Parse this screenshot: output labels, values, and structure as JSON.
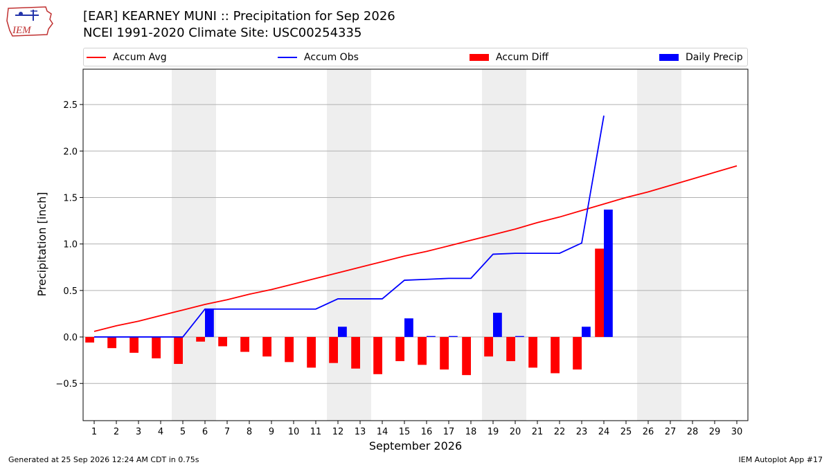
{
  "header": {
    "logo_text": "IEM",
    "title_line1": "[EAR] KEARNEY MUNI :: Precipitation for Sep 2026",
    "title_line2": "NCEI 1991-2020 Climate Site: USC00254335"
  },
  "legend": [
    {
      "label": "Accum Avg",
      "kind": "line",
      "color": "#ff0000"
    },
    {
      "label": "Accum Obs",
      "kind": "line",
      "color": "#0000ff"
    },
    {
      "label": "Accum Diff",
      "kind": "box",
      "color": "#ff0000"
    },
    {
      "label": "Daily Precip",
      "kind": "box",
      "color": "#0000ff"
    }
  ],
  "footer": {
    "left": "Generated at 25 Sep 2026 12:24 AM CDT in 0.75s",
    "right": "IEM Autoplot App #17"
  },
  "chart_data": {
    "type": "bar",
    "xlabel": "September 2026",
    "ylabel": "Precipitation [inch]",
    "xlim": [
      0.5,
      30.5
    ],
    "ylim": [
      -0.9,
      2.88
    ],
    "yticks": [
      -0.5,
      0.0,
      0.5,
      1.0,
      1.5,
      2.0,
      2.5
    ],
    "ytick_labels": [
      "−0.5",
      "0.0",
      "0.5",
      "1.0",
      "1.5",
      "2.0",
      "2.5"
    ],
    "x": [
      1,
      2,
      3,
      4,
      5,
      6,
      7,
      8,
      9,
      10,
      11,
      12,
      13,
      14,
      15,
      16,
      17,
      18,
      19,
      20,
      21,
      22,
      23,
      24,
      25,
      26,
      27,
      28,
      29,
      30
    ],
    "x_labels": [
      "1",
      "2",
      "3",
      "4",
      "5",
      "6",
      "7",
      "8",
      "9",
      "10",
      "11",
      "12",
      "13",
      "14",
      "15",
      "16",
      "17",
      "18",
      "19",
      "20",
      "21",
      "22",
      "23",
      "24",
      "25",
      "26",
      "27",
      "28",
      "29",
      "30"
    ],
    "grid": "horizontal",
    "weekend_shading": [
      [
        5,
        6
      ],
      [
        12,
        13
      ],
      [
        19,
        20
      ],
      [
        26,
        27
      ]
    ],
    "shade_color": "#eeeeee",
    "series": [
      {
        "name": "Accum Avg",
        "kind": "line",
        "color": "#ff0000",
        "x": [
          1,
          2,
          3,
          4,
          5,
          6,
          7,
          8,
          9,
          10,
          11,
          12,
          13,
          14,
          15,
          16,
          17,
          18,
          19,
          20,
          21,
          22,
          23,
          24,
          25,
          26,
          27,
          28,
          29,
          30
        ],
        "values": [
          0.06,
          0.12,
          0.17,
          0.23,
          0.29,
          0.35,
          0.4,
          0.46,
          0.51,
          0.57,
          0.63,
          0.69,
          0.75,
          0.81,
          0.87,
          0.92,
          0.98,
          1.04,
          1.1,
          1.16,
          1.23,
          1.29,
          1.36,
          1.43,
          1.5,
          1.56,
          1.63,
          1.7,
          1.77,
          1.84
        ]
      },
      {
        "name": "Accum Obs",
        "kind": "line",
        "color": "#0000ff",
        "x": [
          1,
          2,
          3,
          4,
          5,
          6,
          7,
          8,
          9,
          10,
          11,
          12,
          13,
          14,
          15,
          16,
          17,
          18,
          19,
          20,
          21,
          22,
          23,
          24
        ],
        "values": [
          0.0,
          0.0,
          0.0,
          0.0,
          0.0,
          0.3,
          0.3,
          0.3,
          0.3,
          0.3,
          0.3,
          0.41,
          0.41,
          0.41,
          0.61,
          0.62,
          0.63,
          0.63,
          0.89,
          0.9,
          0.9,
          0.9,
          1.01,
          2.38
        ]
      },
      {
        "name": "Accum Diff",
        "kind": "bar",
        "color": "#ff0000",
        "x": [
          1,
          2,
          3,
          4,
          5,
          6,
          7,
          8,
          9,
          10,
          11,
          12,
          13,
          14,
          15,
          16,
          17,
          18,
          19,
          20,
          21,
          22,
          23,
          24
        ],
        "values": [
          -0.06,
          -0.12,
          -0.17,
          -0.23,
          -0.29,
          -0.05,
          -0.1,
          -0.16,
          -0.21,
          -0.27,
          -0.33,
          -0.28,
          -0.34,
          -0.4,
          -0.26,
          -0.3,
          -0.35,
          -0.41,
          -0.21,
          -0.26,
          -0.33,
          -0.39,
          -0.35,
          0.95
        ]
      },
      {
        "name": "Daily Precip",
        "kind": "bar",
        "color": "#0000ff",
        "x": [
          1,
          2,
          3,
          4,
          5,
          6,
          7,
          8,
          9,
          10,
          11,
          12,
          13,
          14,
          15,
          16,
          17,
          18,
          19,
          20,
          21,
          22,
          23,
          24
        ],
        "values": [
          0,
          0,
          0,
          0,
          0,
          0.3,
          0,
          0,
          0,
          0,
          0,
          0.11,
          0,
          0,
          0.2,
          0.01,
          0.01,
          0,
          0.26,
          0.01,
          0,
          0,
          0.11,
          1.37
        ]
      }
    ]
  }
}
